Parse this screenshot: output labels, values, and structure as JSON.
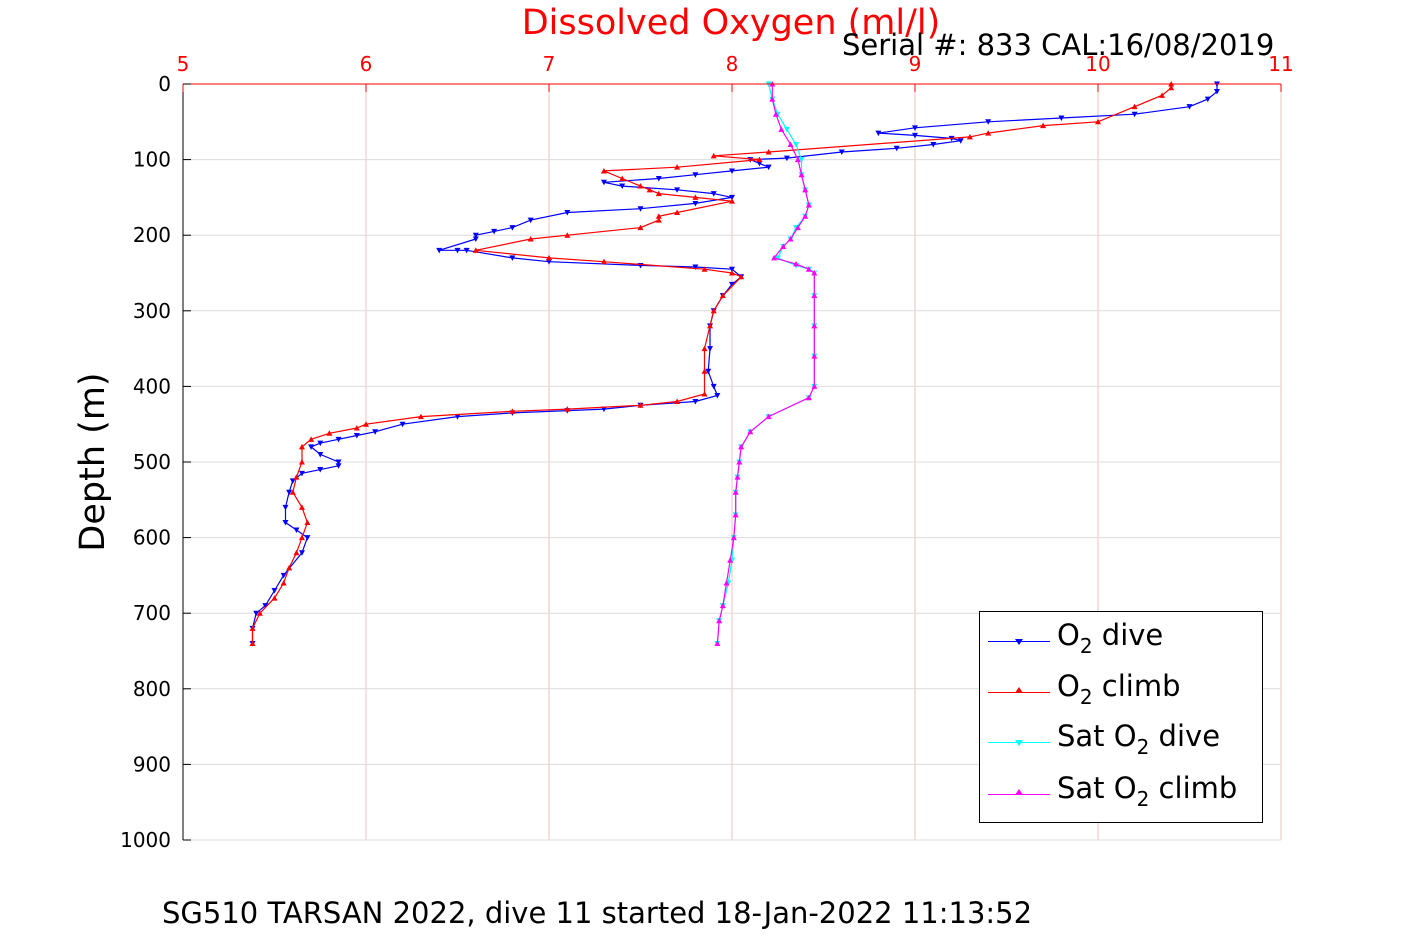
{
  "figure": {
    "title": "Dissolved Oxygen (ml/l)",
    "title_color": "#ff0000",
    "serial_label": "Serial #: 833  CAL:16/08/2019",
    "caption": "SG510 TARSAN 2022, dive 11 started 18-Jan-2022 11:13:52"
  },
  "chart_data": {
    "type": "line",
    "title": "Dissolved Oxygen (ml/l)",
    "xlabel": "",
    "ylabel": "Depth (m)",
    "xlim": [
      5,
      11
    ],
    "ylim": [
      0,
      1000
    ],
    "y_reversed": true,
    "x_axis_position": "top",
    "x_ticks": [
      5,
      6,
      7,
      8,
      9,
      10,
      11
    ],
    "y_ticks": [
      0,
      100,
      200,
      300,
      400,
      500,
      600,
      700,
      800,
      900,
      1000
    ],
    "grid": true,
    "grid_color": "#f2c0c0",
    "legend_position": "bottom-right",
    "series": [
      {
        "name": "O2 dive",
        "label_main": "O",
        "label_sub": "2",
        "label_rest": " dive",
        "color": "#0000ff",
        "marker": "triangle-down",
        "points": [
          [
            10.65,
            0
          ],
          [
            10.65,
            10
          ],
          [
            10.6,
            20
          ],
          [
            10.5,
            30
          ],
          [
            10.2,
            40
          ],
          [
            9.8,
            45
          ],
          [
            9.4,
            50
          ],
          [
            9.0,
            58
          ],
          [
            8.8,
            65
          ],
          [
            9.0,
            68
          ],
          [
            9.2,
            72
          ],
          [
            9.25,
            75
          ],
          [
            9.1,
            80
          ],
          [
            8.9,
            85
          ],
          [
            8.6,
            90
          ],
          [
            8.3,
            98
          ],
          [
            8.1,
            100
          ],
          [
            8.15,
            105
          ],
          [
            8.2,
            110
          ],
          [
            8.0,
            115
          ],
          [
            7.8,
            120
          ],
          [
            7.6,
            125
          ],
          [
            7.3,
            130
          ],
          [
            7.4,
            135
          ],
          [
            7.7,
            140
          ],
          [
            7.9,
            145
          ],
          [
            8.0,
            150
          ],
          [
            7.8,
            158
          ],
          [
            7.5,
            165
          ],
          [
            7.1,
            170
          ],
          [
            6.9,
            180
          ],
          [
            6.8,
            190
          ],
          [
            6.7,
            195
          ],
          [
            6.6,
            200
          ],
          [
            6.6,
            205
          ],
          [
            6.4,
            220
          ],
          [
            6.5,
            220
          ],
          [
            6.55,
            220
          ],
          [
            6.8,
            230
          ],
          [
            7.0,
            235
          ],
          [
            7.5,
            240
          ],
          [
            7.8,
            242
          ],
          [
            8.0,
            245
          ],
          [
            8.05,
            255
          ],
          [
            8.0,
            265
          ],
          [
            7.95,
            280
          ],
          [
            7.9,
            300
          ],
          [
            7.88,
            320
          ],
          [
            7.88,
            350
          ],
          [
            7.87,
            380
          ],
          [
            7.9,
            400
          ],
          [
            7.92,
            412
          ],
          [
            7.8,
            420
          ],
          [
            7.5,
            425
          ],
          [
            7.3,
            430
          ],
          [
            7.1,
            432
          ],
          [
            6.8,
            435
          ],
          [
            6.5,
            440
          ],
          [
            6.2,
            450
          ],
          [
            6.05,
            460
          ],
          [
            5.95,
            465
          ],
          [
            5.85,
            470
          ],
          [
            5.75,
            475
          ],
          [
            5.7,
            480
          ],
          [
            5.75,
            490
          ],
          [
            5.85,
            500
          ],
          [
            5.85,
            505
          ],
          [
            5.75,
            510
          ],
          [
            5.65,
            515
          ],
          [
            5.6,
            525
          ],
          [
            5.58,
            540
          ],
          [
            5.56,
            560
          ],
          [
            5.56,
            580
          ],
          [
            5.62,
            590
          ],
          [
            5.68,
            600
          ],
          [
            5.65,
            620
          ],
          [
            5.55,
            650
          ],
          [
            5.5,
            670
          ],
          [
            5.45,
            690
          ],
          [
            5.4,
            700
          ],
          [
            5.38,
            720
          ],
          [
            5.38,
            740
          ]
        ]
      },
      {
        "name": "O2 climb",
        "label_main": "O",
        "label_sub": "2",
        "label_rest": " climb",
        "color": "#ff0000",
        "marker": "triangle-up",
        "points": [
          [
            5.38,
            740
          ],
          [
            5.38,
            720
          ],
          [
            5.42,
            700
          ],
          [
            5.5,
            680
          ],
          [
            5.55,
            660
          ],
          [
            5.58,
            640
          ],
          [
            5.62,
            620
          ],
          [
            5.65,
            600
          ],
          [
            5.68,
            580
          ],
          [
            5.65,
            560
          ],
          [
            5.6,
            540
          ],
          [
            5.62,
            520
          ],
          [
            5.65,
            500
          ],
          [
            5.65,
            480
          ],
          [
            5.7,
            470
          ],
          [
            5.8,
            462
          ],
          [
            5.95,
            455
          ],
          [
            6.0,
            450
          ],
          [
            6.3,
            440
          ],
          [
            6.8,
            433
          ],
          [
            7.1,
            430
          ],
          [
            7.5,
            425
          ],
          [
            7.7,
            420
          ],
          [
            7.85,
            410
          ],
          [
            7.85,
            380
          ],
          [
            7.85,
            350
          ],
          [
            7.88,
            320
          ],
          [
            7.9,
            300
          ],
          [
            7.95,
            280
          ],
          [
            8.05,
            255
          ],
          [
            8.0,
            250
          ],
          [
            7.85,
            245
          ],
          [
            7.3,
            235
          ],
          [
            7.0,
            230
          ],
          [
            6.6,
            220
          ],
          [
            6.9,
            205
          ],
          [
            7.1,
            200
          ],
          [
            7.5,
            190
          ],
          [
            7.6,
            180
          ],
          [
            7.6,
            175
          ],
          [
            7.7,
            170
          ],
          [
            8.0,
            155
          ],
          [
            7.8,
            150
          ],
          [
            7.6,
            145
          ],
          [
            7.55,
            140
          ],
          [
            7.5,
            135
          ],
          [
            7.4,
            125
          ],
          [
            7.3,
            115
          ],
          [
            7.7,
            110
          ],
          [
            8.15,
            100
          ],
          [
            7.9,
            95
          ],
          [
            8.2,
            90
          ],
          [
            9.3,
            70
          ],
          [
            9.4,
            65
          ],
          [
            9.7,
            55
          ],
          [
            10.0,
            50
          ],
          [
            10.2,
            30
          ],
          [
            10.35,
            15
          ],
          [
            10.4,
            5
          ],
          [
            10.4,
            0
          ]
        ]
      },
      {
        "name": "Sat O2 dive",
        "label_main": "Sat O",
        "label_sub": "2",
        "label_rest": " dive",
        "color": "#00ffff",
        "marker": "triangle-down",
        "points": [
          [
            8.2,
            0
          ],
          [
            8.22,
            20
          ],
          [
            8.25,
            40
          ],
          [
            8.3,
            60
          ],
          [
            8.35,
            80
          ],
          [
            8.38,
            100
          ],
          [
            8.38,
            120
          ],
          [
            8.4,
            140
          ],
          [
            8.42,
            160
          ],
          [
            8.4,
            175
          ],
          [
            8.35,
            190
          ],
          [
            8.32,
            205
          ],
          [
            8.28,
            215
          ],
          [
            8.25,
            230
          ],
          [
            8.35,
            240
          ],
          [
            8.42,
            245
          ],
          [
            8.45,
            250
          ],
          [
            8.45,
            280
          ],
          [
            8.45,
            320
          ],
          [
            8.45,
            360
          ],
          [
            8.45,
            400
          ],
          [
            8.42,
            415
          ],
          [
            8.2,
            440
          ],
          [
            8.1,
            460
          ],
          [
            8.05,
            480
          ],
          [
            8.04,
            500
          ],
          [
            8.03,
            520
          ],
          [
            8.02,
            540
          ],
          [
            8.02,
            570
          ],
          [
            8.01,
            600
          ],
          [
            8.0,
            630
          ],
          [
            7.98,
            660
          ],
          [
            7.95,
            690
          ],
          [
            7.93,
            710
          ],
          [
            7.92,
            740
          ]
        ]
      },
      {
        "name": "Sat O2 climb",
        "label_main": "Sat O",
        "label_sub": "2",
        "label_rest": " climb",
        "color": "#ff00ff",
        "marker": "triangle-up",
        "points": [
          [
            7.92,
            740
          ],
          [
            7.93,
            710
          ],
          [
            7.95,
            690
          ],
          [
            7.97,
            660
          ],
          [
            7.99,
            630
          ],
          [
            8.01,
            600
          ],
          [
            8.02,
            570
          ],
          [
            8.02,
            540
          ],
          [
            8.03,
            520
          ],
          [
            8.04,
            500
          ],
          [
            8.05,
            480
          ],
          [
            8.1,
            460
          ],
          [
            8.2,
            440
          ],
          [
            8.42,
            415
          ],
          [
            8.45,
            400
          ],
          [
            8.45,
            360
          ],
          [
            8.45,
            320
          ],
          [
            8.45,
            280
          ],
          [
            8.45,
            250
          ],
          [
            8.42,
            245
          ],
          [
            8.35,
            238
          ],
          [
            8.23,
            230
          ],
          [
            8.28,
            215
          ],
          [
            8.32,
            205
          ],
          [
            8.36,
            190
          ],
          [
            8.4,
            175
          ],
          [
            8.42,
            160
          ],
          [
            8.4,
            140
          ],
          [
            8.38,
            120
          ],
          [
            8.36,
            100
          ],
          [
            8.32,
            80
          ],
          [
            8.27,
            60
          ],
          [
            8.24,
            40
          ],
          [
            8.22,
            20
          ],
          [
            8.22,
            0
          ]
        ]
      }
    ]
  }
}
